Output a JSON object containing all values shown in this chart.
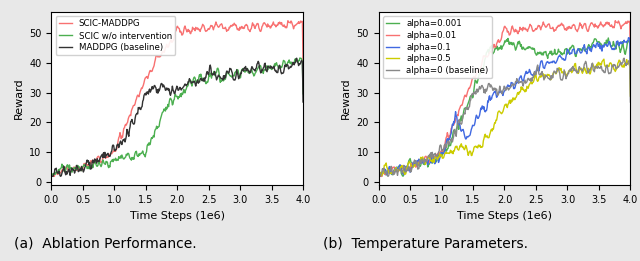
{
  "left_title": "(a)  Ablation Performance.",
  "right_title": "(b)  Temperature Parameters.",
  "xlabel": "Time Steps (1e6)",
  "ylabel": "Reward",
  "xlim": [
    0.0,
    4.0
  ],
  "ylim": [
    -1,
    57
  ],
  "yticks": [
    0,
    10,
    20,
    30,
    40,
    50
  ],
  "xticks": [
    0.0,
    0.5,
    1.0,
    1.5,
    2.0,
    2.5,
    3.0,
    3.5,
    4.0
  ],
  "left_legend": [
    {
      "label": "SCIC-MADDPG",
      "color": "#f87171"
    },
    {
      "label": "SCIC w/o intervention",
      "color": "#4caf50"
    },
    {
      "label": "MADDPG (baseline)",
      "color": "#333333"
    }
  ],
  "right_legend": [
    {
      "label": "alpha=0.001",
      "color": "#4caf50"
    },
    {
      "label": "alpha=0.01",
      "color": "#f87171"
    },
    {
      "label": "alpha=0.1",
      "color": "#4169e1"
    },
    {
      "label": "alpha=0.5",
      "color": "#cccc00"
    },
    {
      "label": "alpha=0 (baseline)",
      "color": "#888888"
    }
  ],
  "bg_color": "#ffffff",
  "fig_bg": "#e8e8e8"
}
